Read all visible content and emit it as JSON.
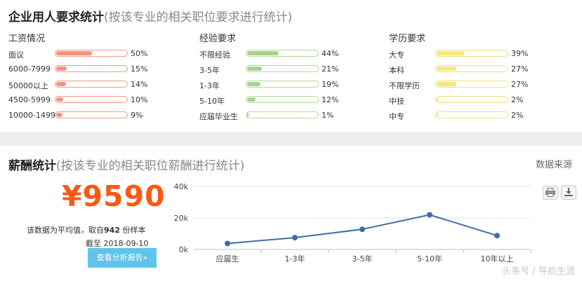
{
  "req": {
    "title": "企业用人要求统计",
    "subtitle": "(按该专业的相关职位要求进行统计)",
    "salary": {
      "head": "工资情况",
      "items": [
        {
          "label": "面议",
          "pct": "50%",
          "value": 50
        },
        {
          "label": "6000-7999",
          "pct": "15%",
          "value": 15
        },
        {
          "label": "50000以上",
          "pct": "14%",
          "value": 14
        },
        {
          "label": "4500-5999",
          "pct": "10%",
          "value": 10
        },
        {
          "label": "10000-14999",
          "pct": "9%",
          "value": 9
        }
      ]
    },
    "experience": {
      "head": "经验要求",
      "items": [
        {
          "label": "不限经验",
          "pct": "44%",
          "value": 44
        },
        {
          "label": "3-5年",
          "pct": "21%",
          "value": 21
        },
        {
          "label": "1-3年",
          "pct": "19%",
          "value": 19
        },
        {
          "label": "5-10年",
          "pct": "12%",
          "value": 12
        },
        {
          "label": "应届毕业生",
          "pct": "1%",
          "value": 1
        }
      ]
    },
    "education": {
      "head": "学历要求",
      "items": [
        {
          "label": "大专",
          "pct": "39%",
          "value": 39
        },
        {
          "label": "本科",
          "pct": "27%",
          "value": 27
        },
        {
          "label": "不限学历",
          "pct": "27%",
          "value": 27
        },
        {
          "label": "中技",
          "pct": "2%",
          "value": 2
        },
        {
          "label": "中专",
          "pct": "2%",
          "value": 2
        }
      ]
    }
  },
  "salary_stats": {
    "title": "薪酬统计",
    "subtitle": "(按该专业的相关职位薪酬进行统计)",
    "data_source": "数据来源",
    "amount": "¥9590",
    "note_prefix": "该数据为平均值，取自",
    "sample_count": "942",
    "note_suffix": "份样本",
    "cutoff": "截至 2018-09-10",
    "report_button": "查看分析报告»"
  },
  "toolbar": {
    "print_icon": "printer-icon",
    "download_icon": "download-icon"
  },
  "colors": {
    "salary": "#f3937d",
    "experience": "#a8d18a",
    "education": "#f6e87a",
    "price": "#f75a15",
    "line": "#3f6ea5",
    "button": "#5fc4e9"
  },
  "chart_data": {
    "type": "line",
    "categories": [
      "应届生",
      "1-3年",
      "3-5年",
      "5-10年",
      "10年以上"
    ],
    "values": [
      3800,
      7500,
      12800,
      22000,
      8800
    ],
    "ylim": [
      0,
      40000
    ],
    "yticks": [
      "0k",
      "20k",
      "40k"
    ],
    "grid": true
  },
  "watermark": "头条号 / 导航生涯"
}
